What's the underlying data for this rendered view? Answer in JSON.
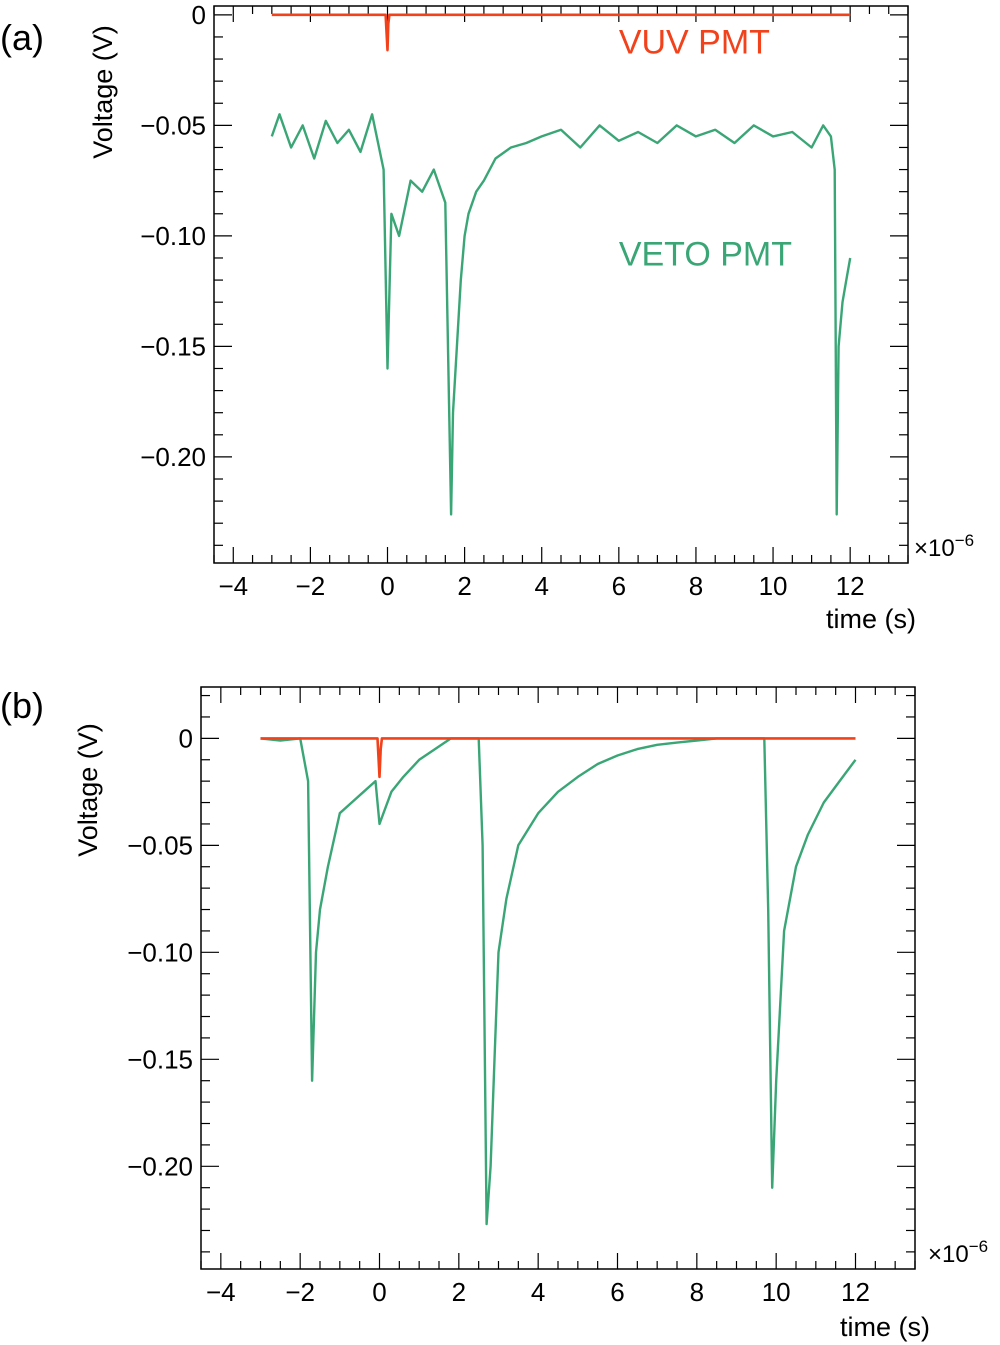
{
  "colors": {
    "vuv": "#f2421c",
    "veto": "#3aa676",
    "axis": "#000000"
  },
  "chart_data": [
    {
      "type": "line",
      "panel_label": "(a)",
      "xlabel": "time (s)",
      "ylabel": "Voltage (V)",
      "x_multiplier": "×10",
      "x_exponent": "−6",
      "xlim": [
        -4.5,
        13.5
      ],
      "ylim": [
        -0.248,
        0.004
      ],
      "x_ticks": [
        -4,
        -2,
        0,
        2,
        4,
        6,
        8,
        10,
        12
      ],
      "x_tick_labels": [
        "−4",
        "−2",
        "0",
        "2",
        "4",
        "6",
        "8",
        "10",
        "12"
      ],
      "y_ticks": [
        0,
        -0.05,
        -0.1,
        -0.15,
        -0.2
      ],
      "y_tick_labels": [
        "0",
        "−0.05",
        "−0.10",
        "−0.15",
        "−0.20"
      ],
      "annotations": [
        {
          "text": "VUV PMT",
          "x": 6.0,
          "y": -0.012,
          "series": "vuv"
        },
        {
          "text": "VETO PMT",
          "x": 6.0,
          "y": -0.108,
          "series": "veto"
        }
      ],
      "series": [
        {
          "key": "vuv",
          "x": [
            -3.0,
            -0.05,
            0.0,
            0.02,
            0.05,
            12.0
          ],
          "y": [
            0.0,
            0.0,
            -0.016,
            -0.004,
            0.0,
            0.0
          ]
        },
        {
          "key": "veto",
          "x": [
            -3.0,
            -2.8,
            -2.5,
            -2.2,
            -1.9,
            -1.6,
            -1.3,
            -1.0,
            -0.7,
            -0.4,
            -0.1,
            0.0,
            0.1,
            0.3,
            0.6,
            0.9,
            1.2,
            1.5,
            1.65,
            1.7,
            1.8,
            1.9,
            2.0,
            2.1,
            2.3,
            2.5,
            2.8,
            3.2,
            3.6,
            4.0,
            4.5,
            5.0,
            5.5,
            6.0,
            6.5,
            7.0,
            7.5,
            8.0,
            8.5,
            9.0,
            9.5,
            10.0,
            10.5,
            11.0,
            11.3,
            11.5,
            11.6,
            11.65,
            11.7,
            11.8,
            11.9,
            12.0
          ],
          "y": [
            -0.055,
            -0.045,
            -0.06,
            -0.05,
            -0.065,
            -0.048,
            -0.058,
            -0.052,
            -0.062,
            -0.045,
            -0.07,
            -0.16,
            -0.09,
            -0.1,
            -0.075,
            -0.08,
            -0.07,
            -0.085,
            -0.226,
            -0.18,
            -0.15,
            -0.12,
            -0.1,
            -0.09,
            -0.08,
            -0.075,
            -0.065,
            -0.06,
            -0.058,
            -0.055,
            -0.052,
            -0.06,
            -0.05,
            -0.057,
            -0.053,
            -0.058,
            -0.05,
            -0.055,
            -0.052,
            -0.058,
            -0.05,
            -0.055,
            -0.053,
            -0.06,
            -0.05,
            -0.055,
            -0.07,
            -0.226,
            -0.15,
            -0.13,
            -0.12,
            -0.11
          ]
        }
      ]
    },
    {
      "type": "line",
      "panel_label": "(b)",
      "xlabel": "time (s)",
      "ylabel": "Voltage (V)",
      "x_multiplier": "×10",
      "x_exponent": "−6",
      "xlim": [
        -4.5,
        13.5
      ],
      "ylim": [
        -0.248,
        0.024
      ],
      "x_ticks": [
        -4,
        -2,
        0,
        2,
        4,
        6,
        8,
        10,
        12
      ],
      "x_tick_labels": [
        "−4",
        "−2",
        "0",
        "2",
        "4",
        "6",
        "8",
        "10",
        "12"
      ],
      "y_ticks": [
        0,
        -0.05,
        -0.1,
        -0.15,
        -0.2
      ],
      "y_tick_labels": [
        "0",
        "−0.05",
        "−0.10",
        "−0.15",
        "−0.20"
      ],
      "series": [
        {
          "key": "vuv",
          "x": [
            -3.0,
            -0.05,
            0.0,
            0.03,
            0.06,
            12.0
          ],
          "y": [
            0.0,
            0.0,
            -0.018,
            -0.005,
            0.0,
            0.0
          ]
        },
        {
          "key": "veto",
          "x": [
            -3.0,
            -2.5,
            -2.0,
            -1.8,
            -1.7,
            -1.6,
            -1.5,
            -1.3,
            -1.0,
            -0.7,
            -0.4,
            -0.1,
            0.0,
            0.3,
            0.6,
            1.0,
            1.4,
            1.8,
            2.2,
            2.5,
            2.6,
            2.7,
            2.8,
            2.9,
            3.0,
            3.2,
            3.5,
            4.0,
            4.5,
            5.0,
            5.5,
            6.0,
            6.5,
            7.0,
            7.5,
            8.0,
            8.5,
            9.0,
            9.5,
            9.7,
            9.8,
            9.9,
            10.0,
            10.2,
            10.5,
            10.8,
            11.2,
            11.6,
            12.0
          ],
          "y": [
            0.0,
            -0.001,
            0.0,
            -0.02,
            -0.16,
            -0.1,
            -0.08,
            -0.06,
            -0.035,
            -0.03,
            -0.025,
            -0.02,
            -0.04,
            -0.025,
            -0.018,
            -0.01,
            -0.005,
            0.0,
            0.0,
            0.0,
            -0.05,
            -0.227,
            -0.2,
            -0.15,
            -0.1,
            -0.075,
            -0.05,
            -0.035,
            -0.025,
            -0.018,
            -0.012,
            -0.008,
            -0.005,
            -0.003,
            -0.002,
            -0.001,
            0.0,
            0.0,
            0.0,
            0.0,
            -0.08,
            -0.21,
            -0.16,
            -0.09,
            -0.06,
            -0.045,
            -0.03,
            -0.02,
            -0.01
          ]
        }
      ]
    }
  ]
}
